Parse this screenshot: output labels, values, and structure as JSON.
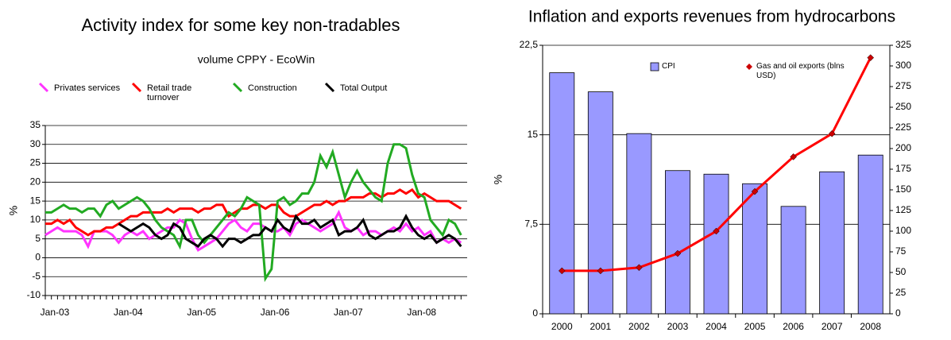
{
  "chart_data": [
    {
      "type": "line",
      "title": "Activity index for some key non-tradables",
      "subtitle": "volume CPPY - EcoWin",
      "y_label": "%",
      "categories": [
        "Jan-03",
        null,
        null,
        null,
        null,
        null,
        null,
        null,
        null,
        null,
        null,
        null,
        "Jan-04",
        null,
        null,
        null,
        null,
        null,
        null,
        null,
        null,
        null,
        null,
        null,
        "Jan-05",
        null,
        null,
        null,
        null,
        null,
        null,
        null,
        null,
        null,
        null,
        null,
        "Jan-06",
        null,
        null,
        null,
        null,
        null,
        null,
        null,
        null,
        null,
        null,
        null,
        "Jan-07",
        null,
        null,
        null,
        null,
        null,
        null,
        null,
        null,
        null,
        null,
        null,
        "Jan-08",
        null,
        null,
        null,
        null,
        null,
        null,
        null,
        null
      ],
      "series": [
        {
          "name": "Privates services",
          "color": "#ff33ff",
          "values": [
            6,
            7,
            8,
            7,
            7,
            7,
            6,
            3,
            7,
            7,
            7,
            6,
            4,
            6,
            7,
            6,
            7,
            5,
            6,
            7,
            8,
            8,
            10,
            9,
            5,
            2,
            3,
            4,
            5,
            7,
            9,
            10,
            8,
            7,
            9,
            9,
            8,
            7,
            7,
            8,
            6,
            9,
            10,
            9,
            8,
            7,
            8,
            9,
            12,
            8,
            7,
            8,
            6,
            7,
            7,
            6,
            7,
            8,
            7,
            9,
            7,
            8,
            6,
            7,
            4,
            5,
            4,
            5,
            4
          ]
        },
        {
          "name": "Retail trade turnover",
          "color": "#ff0000",
          "values": [
            9,
            9,
            10,
            9,
            10,
            8,
            7,
            6,
            7,
            7,
            8,
            8,
            9,
            10,
            11,
            11,
            12,
            12,
            12,
            12,
            13,
            12,
            13,
            13,
            13,
            12,
            13,
            13,
            14,
            14,
            11,
            12,
            13,
            13,
            14,
            14,
            13,
            14,
            14,
            12,
            11,
            11,
            12,
            13,
            14,
            14,
            15,
            14,
            15,
            15,
            16,
            16,
            16,
            17,
            17,
            16,
            17,
            17,
            18,
            17,
            18,
            16,
            17,
            16,
            15,
            15,
            15,
            14,
            13
          ]
        },
        {
          "name": "Construction",
          "color": "#22aa22",
          "values": [
            12,
            12,
            13,
            14,
            13,
            13,
            12,
            13,
            13,
            11,
            14,
            15,
            13,
            14,
            15,
            16,
            15,
            13,
            10,
            8,
            7,
            6,
            3,
            10,
            10,
            6,
            4,
            6,
            8,
            10,
            12,
            11,
            13,
            16,
            15,
            14,
            -5.5,
            -3,
            15,
            16,
            14,
            15,
            17,
            17,
            20,
            27,
            24,
            28,
            22,
            16,
            20,
            23,
            20,
            18,
            16,
            15,
            25,
            30,
            30,
            29,
            22,
            17,
            16,
            10,
            8,
            6,
            10,
            9,
            6
          ]
        },
        {
          "name": "Total Output",
          "color": "#000000",
          "values": [
            null,
            null,
            null,
            null,
            null,
            null,
            null,
            null,
            null,
            null,
            null,
            null,
            9,
            8,
            7,
            8,
            9,
            8,
            6,
            5,
            6,
            9,
            8,
            5,
            4,
            3,
            5,
            6,
            5,
            3,
            5,
            5,
            4,
            5,
            6,
            6,
            8,
            7,
            10,
            8,
            7,
            11,
            9,
            9,
            10,
            8,
            9,
            10,
            6,
            7,
            7,
            8,
            10,
            6,
            5,
            6,
            7,
            7,
            8,
            11,
            8,
            6,
            5,
            6,
            4,
            5,
            6,
            5,
            3
          ]
        }
      ],
      "ylim": [
        -10,
        35
      ],
      "yticks": [
        -10,
        -5,
        0,
        5,
        10,
        15,
        20,
        25,
        30,
        35
      ],
      "grid": true
    },
    {
      "type": "bar",
      "title": "Inflation and exports revenues from hydrocarbons",
      "y_label": "%",
      "categories": [
        "2000",
        "2001",
        "2002",
        "2003",
        "2004",
        "2005",
        "2006",
        "2007",
        "2008"
      ],
      "series": [
        {
          "name": "CPI",
          "type": "bar",
          "color": "#9999ff",
          "values": [
            20.2,
            18.6,
            15.1,
            12.0,
            11.7,
            10.9,
            9.0,
            11.9,
            13.3
          ]
        },
        {
          "name": "Gas and oil exports (blns USD)",
          "type": "line",
          "axis": "y2",
          "color": "#ff0000",
          "marker_color": "#cc0000",
          "values": [
            52,
            52,
            56,
            73,
            100,
            148,
            190,
            218,
            310
          ]
        }
      ],
      "ylim": [
        0,
        22.5
      ],
      "yticks": [
        0,
        {
          "value": 7.5,
          "label": "7,5"
        },
        15,
        {
          "value": 22.5,
          "label": "22,5"
        }
      ],
      "y2lim": [
        0,
        325
      ],
      "y2ticks": [
        0,
        25,
        50,
        75,
        100,
        125,
        150,
        175,
        200,
        225,
        250,
        275,
        300,
        325
      ],
      "grid": true
    }
  ]
}
